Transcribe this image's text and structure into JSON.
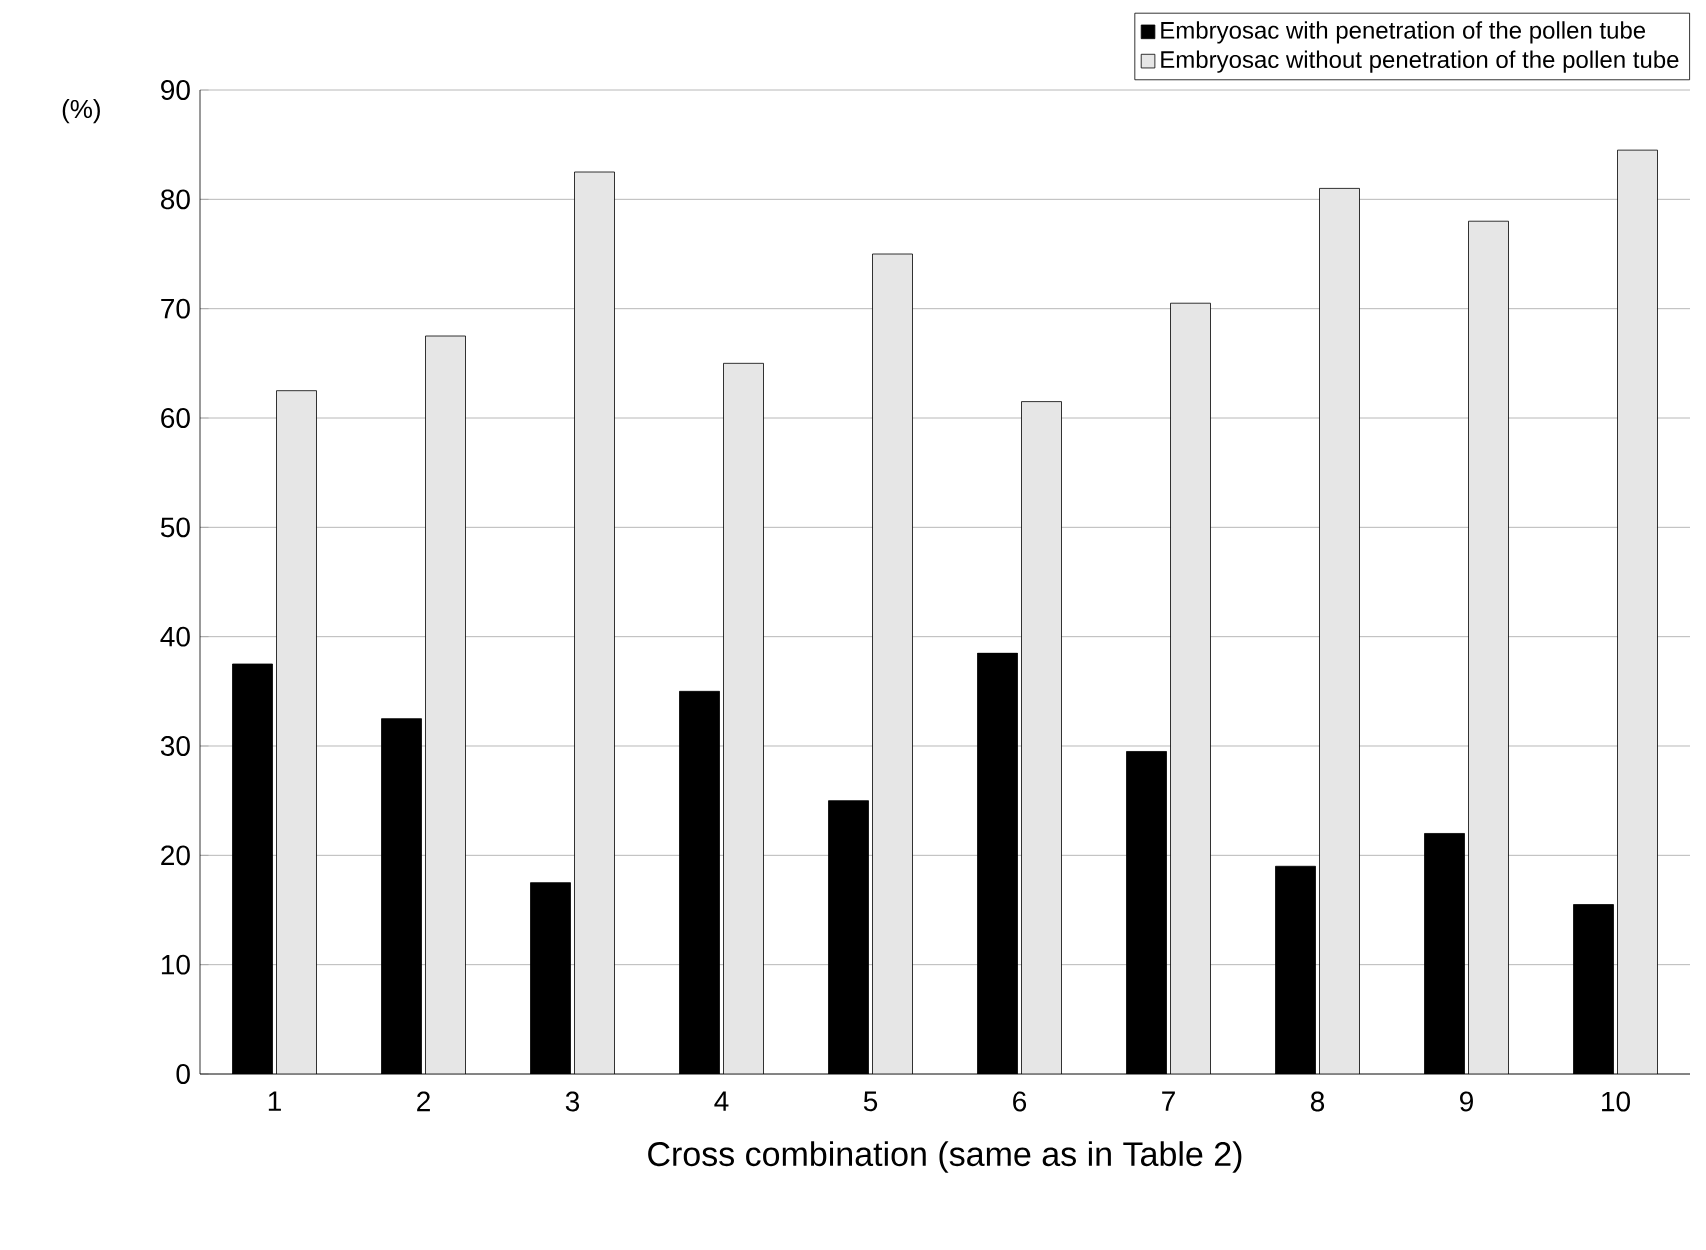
{
  "chart_data": {
    "type": "bar",
    "xlabel": "Cross combination (same as in Table 2)",
    "ylabel": "(%)",
    "categories": [
      "1",
      "2",
      "3",
      "4",
      "5",
      "6",
      "7",
      "8",
      "9",
      "10"
    ],
    "series": [
      {
        "name": "Embryosac with penetration of the pollen tube",
        "color": "#000000",
        "values": [
          37.5,
          32.5,
          17.5,
          35,
          25,
          38.5,
          29.5,
          19,
          22,
          15.5
        ]
      },
      {
        "name": "Embryosac without penetration of the pollen tube",
        "color": "#e6e6e6",
        "values": [
          62.5,
          67.5,
          82.5,
          65,
          75,
          61.5,
          70.5,
          81,
          78,
          84.5
        ]
      }
    ],
    "ylim": [
      0,
      90
    ],
    "yticks": [
      0,
      10,
      20,
      30,
      40,
      50,
      60,
      70,
      80,
      90
    ],
    "grid": "y",
    "legend": "top right"
  }
}
